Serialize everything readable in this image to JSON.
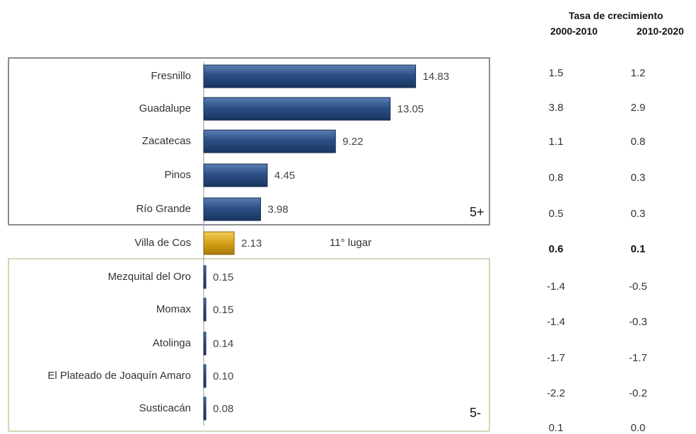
{
  "chart_data": {
    "type": "bar",
    "orientation": "horizontal",
    "categories": [
      "Fresnillo",
      "Guadalupe",
      "Zacatecas",
      "Pinos",
      "Río Grande",
      "Villa de Cos",
      "Mezquital del Oro",
      "Momax",
      "Atolinga",
      "El Plateado de Joaquín Amaro",
      "Susticacán"
    ],
    "values": [
      14.83,
      13.05,
      9.22,
      4.45,
      3.98,
      2.13,
      0.15,
      0.15,
      0.14,
      0.1,
      0.08
    ],
    "value_labels": [
      "14.83",
      "13.05",
      "9.22",
      "4.45",
      "3.98",
      "2.13",
      "0.15",
      "0.15",
      "0.14",
      "0.10",
      "0.08"
    ],
    "highlight_index": 5,
    "highlight_note": "11° lugar",
    "top_group_label": "5+",
    "bottom_group_label": "5-",
    "xlim": [
      0,
      20
    ],
    "colors": {
      "bar": "#2b4f86",
      "highlight": "#d4a017",
      "top_box": "#666666",
      "bottom_box": "#c8c8a0"
    },
    "table": {
      "title": "Tasa de crecimiento",
      "columns": [
        "2000-2010",
        "2010-2020"
      ],
      "rows": [
        [
          "1.5",
          "1.2"
        ],
        [
          "3.8",
          "2.9"
        ],
        [
          "1.1",
          "0.8"
        ],
        [
          "0.8",
          "0.3"
        ],
        [
          "0.5",
          "0.3"
        ],
        [
          "0.6",
          "0.1"
        ],
        [
          "-1.4",
          "-0.5"
        ],
        [
          "-1.4",
          "-0.3"
        ],
        [
          "-1.7",
          "-1.7"
        ],
        [
          "-2.2",
          "-0.2"
        ],
        [
          "0.1",
          "0.0"
        ]
      ],
      "bold_row": 5
    }
  }
}
